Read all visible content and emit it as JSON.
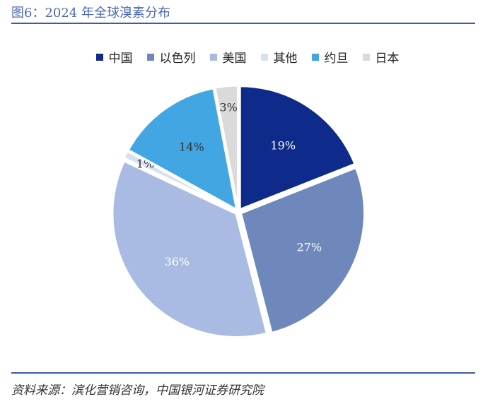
{
  "figure": {
    "title": "图6：2024 年全球溴素分布",
    "source": "资料来源：滨化营销咨询，中国银河证券研究院"
  },
  "chart_data": {
    "type": "pie",
    "title": "",
    "categories": [
      "中国",
      "以色列",
      "美国",
      "其他",
      "约旦",
      "日本"
    ],
    "values": [
      19,
      27,
      36,
      1,
      14,
      3
    ],
    "value_labels": [
      "19%",
      "27%",
      "36%",
      "1%",
      "14%",
      "3%"
    ],
    "colors": [
      "#0e2a8a",
      "#6e88bb",
      "#a9bbe3",
      "#d6e0f2",
      "#41a6e1",
      "#dadada"
    ],
    "label_colors": [
      "#ffffff",
      "#ffffff",
      "#ffffff",
      "#333333",
      "#333333",
      "#333333"
    ],
    "legend_position": "top",
    "start_angle_deg": 0,
    "direction": "clockwise"
  }
}
